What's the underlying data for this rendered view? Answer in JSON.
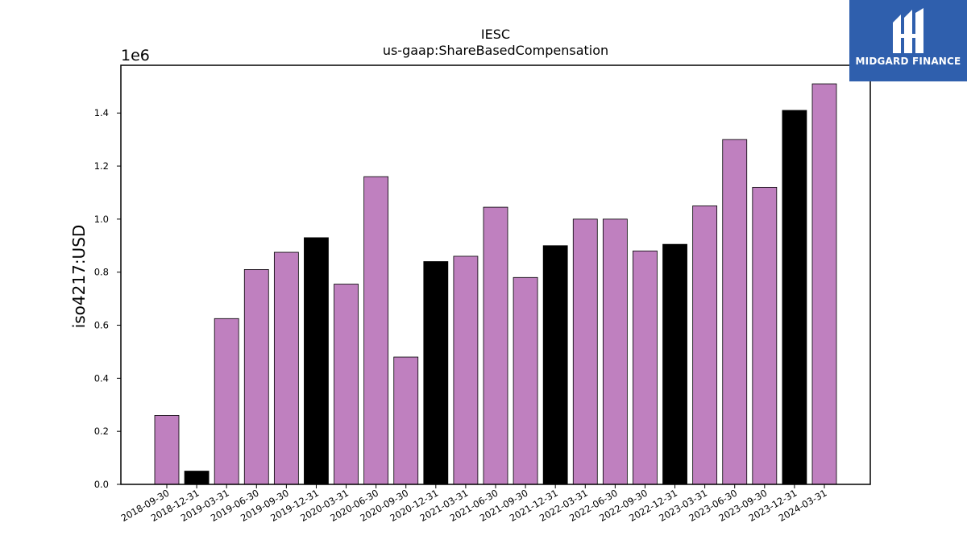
{
  "chart_data": {
    "type": "bar",
    "title": "IESC",
    "subtitle": "us-gaap:ShareBasedCompensation",
    "xlabel": "",
    "ylabel": "iso4217:USD",
    "y_multiplier": "1e6",
    "ylim": [
      0,
      1.58
    ],
    "yticks": [
      "0.0",
      "0.2",
      "0.4",
      "0.6",
      "0.8",
      "1.0",
      "1.2",
      "1.4"
    ],
    "categories": [
      "2018-09-30",
      "2018-12-31",
      "2019-03-31",
      "2019-06-30",
      "2019-09-30",
      "2019-12-31",
      "2020-03-31",
      "2020-06-30",
      "2020-09-30",
      "2020-12-31",
      "2021-03-31",
      "2021-06-30",
      "2021-09-30",
      "2021-12-31",
      "2022-03-31",
      "2022-06-30",
      "2022-09-30",
      "2022-12-31",
      "2023-03-31",
      "2023-06-30",
      "2023-09-30",
      "2023-12-31",
      "2024-03-31"
    ],
    "values": [
      0.26,
      0.05,
      0.625,
      0.81,
      0.875,
      0.93,
      0.755,
      1.16,
      0.48,
      0.84,
      0.86,
      1.045,
      0.78,
      0.9,
      1.0,
      1.0,
      0.88,
      0.905,
      1.05,
      1.3,
      1.12,
      1.41,
      1.51
    ],
    "bar_colors": [
      "#bf80bf",
      "#000000",
      "#bf80bf",
      "#bf80bf",
      "#bf80bf",
      "#000000",
      "#bf80bf",
      "#bf80bf",
      "#bf80bf",
      "#000000",
      "#bf80bf",
      "#bf80bf",
      "#bf80bf",
      "#000000",
      "#bf80bf",
      "#bf80bf",
      "#bf80bf",
      "#000000",
      "#bf80bf",
      "#bf80bf",
      "#bf80bf",
      "#000000",
      "#bf80bf"
    ],
    "grid": false,
    "legend": "none"
  },
  "watermark": {
    "text": "MIDGARD FINANCE",
    "background": "#2f5fad",
    "icon": "midgard-logo-icon"
  }
}
